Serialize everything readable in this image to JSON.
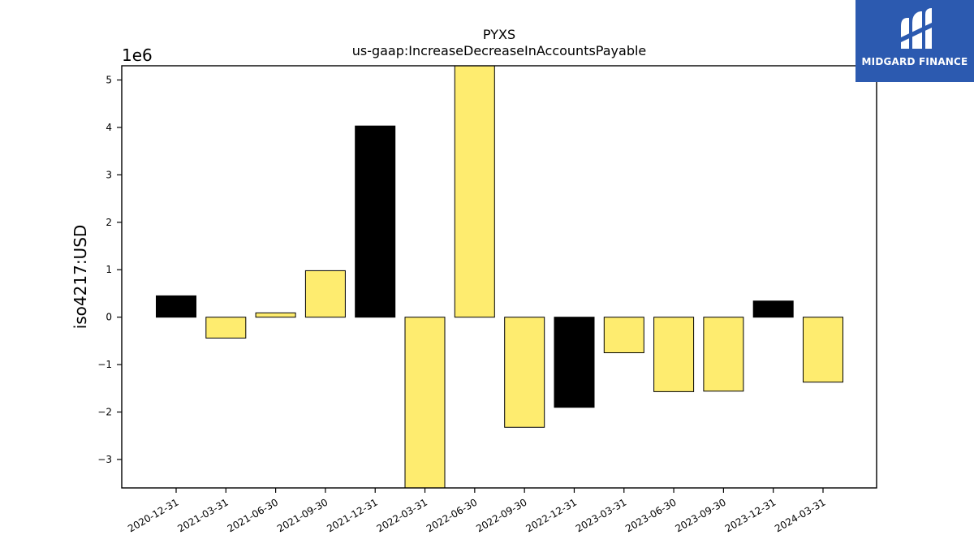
{
  "chart_data": {
    "type": "bar",
    "title": "PYXS",
    "subtitle": "us-gaap:IncreaseDecreaseInAccountsPayable",
    "ylabel": "iso4217:USD",
    "xlabel": "",
    "y_offset_label": "1e6",
    "ylim": [
      -3.6,
      5.3
    ],
    "yticks": [
      -3,
      -2,
      -1,
      0,
      1,
      2,
      3,
      4,
      5
    ],
    "ytick_labels": [
      "−3",
      "−2",
      "−1",
      "0",
      "1",
      "2",
      "3",
      "4",
      "5"
    ],
    "grid": false,
    "categories": [
      "2020-12-31",
      "2021-03-31",
      "2021-06-30",
      "2021-09-30",
      "2021-12-31",
      "2022-03-31",
      "2022-06-30",
      "2022-09-30",
      "2022-12-31",
      "2023-03-31",
      "2023-06-30",
      "2023-09-30",
      "2023-12-31",
      "2024-03-31"
    ],
    "values": [
      0.45,
      -0.44,
      0.09,
      0.98,
      4.03,
      -3.65,
      5.35,
      -2.32,
      -1.9,
      -0.75,
      -1.57,
      -1.56,
      0.34,
      -1.37
    ],
    "bar_colors": [
      "#000000",
      "#feec6f",
      "#feec6f",
      "#feec6f",
      "#000000",
      "#feec6f",
      "#feec6f",
      "#feec6f",
      "#000000",
      "#feec6f",
      "#feec6f",
      "#feec6f",
      "#000000",
      "#feec6f"
    ]
  },
  "logo": {
    "text": "MIDGARD FINANCE",
    "background": "#2c5ab0"
  }
}
